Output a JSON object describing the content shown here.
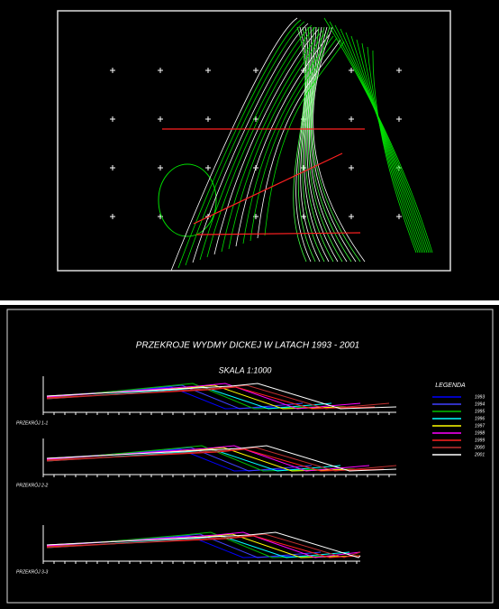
{
  "drawing": {
    "title": "PRZEKROJE WYDMY DICKEJ W LATACH 1993 - 2001",
    "scale": "SKALA 1:1000",
    "legend": {
      "title": "LEGENDA",
      "items": [
        {
          "label": "1993",
          "color": "#0000ff"
        },
        {
          "label": "1994",
          "color": "#4040ff"
        },
        {
          "label": "1995",
          "color": "#00c000"
        },
        {
          "label": "1996",
          "color": "#00ffff"
        },
        {
          "label": "1997",
          "color": "#ffff00"
        },
        {
          "label": "1998",
          "color": "#ff00ff"
        },
        {
          "label": "1999",
          "color": "#ff2020"
        },
        {
          "label": "2000",
          "color": "#c03030"
        },
        {
          "label": "2001",
          "color": "#ffffff"
        }
      ]
    },
    "sections": [
      "PRZEKRÓJ 1-1",
      "PRZEKRÓJ 2-2",
      "PRZEKRÓJ 3-3"
    ]
  }
}
